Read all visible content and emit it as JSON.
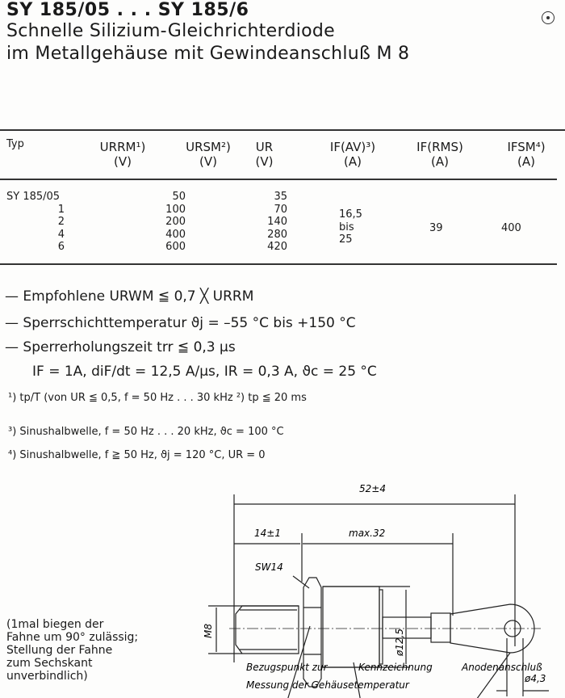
{
  "header": {
    "title": "SY 185/05 . . . SY 185/6",
    "subtitle_line1": "Schnelle Silizium-Gleichrichterdiode",
    "subtitle_line2": "im Metallgehäuse mit Gewindeanschluß M 8"
  },
  "table": {
    "columns": [
      {
        "label": "Typ",
        "unit": ""
      },
      {
        "label": "URRM¹)",
        "unit": "(V)"
      },
      {
        "label": "URSM²)",
        "unit": "(V)"
      },
      {
        "label": "UR",
        "unit": "(V)"
      },
      {
        "label": "IF(AV)³)",
        "unit": "(A)"
      },
      {
        "label": "IF(RMS)",
        "unit": "(A)"
      },
      {
        "label": "IFSM⁴)",
        "unit": "(A)"
      }
    ],
    "rows": [
      {
        "typ": "SY  185/05",
        "urrm": "50",
        "ur": "35"
      },
      {
        "typ": "1",
        "urrm": "100",
        "ur": "70"
      },
      {
        "typ": "2",
        "urrm": "200",
        "ur": "140"
      },
      {
        "typ": "4",
        "urrm": "400",
        "ur": "280"
      },
      {
        "typ": "6",
        "urrm": "600",
        "ur": "420"
      }
    ],
    "if_av": [
      "16,5",
      "bis",
      "25"
    ],
    "if_rms": "39",
    "ifsm": "400"
  },
  "specs": [
    "— Empfohlene URWM ≦ 0,7 ╳ URRM",
    "— Sperrschichttemperatur     ϑj = –55 °C bis +150 °C",
    "— Sperrerholungszeit trr ≦ 0,3 µs",
    "IF = 1A, diF/dt = 12,5 A/µs, IR = 0,3 A, ϑc =  25 °C"
  ],
  "footnotes": [
    "¹) tp/T (von UR ≦ 0,5, f = 50 Hz . . . 30 kHz  ²) tp ≦ 20 ms",
    "³)  Sinushalbwelle, f = 50 Hz . . . 20 kHz,  ϑc = 100 °C",
    "⁴)  Sinushalbwelle, f ≧ 50 Hz,  ϑj  = 120 °C,  UR = 0"
  ],
  "note": "(1mal biegen der\nFahne um 90° zulässig;\nStellung der Fahne\nzum Sechskant\nunverbindlich)",
  "drawing": {
    "dim_total": "52±4",
    "dim_thread": "14±1",
    "dim_body": "max.32",
    "wrench": "SW14",
    "thread": "M8",
    "diameter_body": "ø12,5",
    "diameter_hole": "ø4,3",
    "label_reference_1": "Bezugspunkt zur",
    "label_reference_2": "Messung der Gehäusetemperatur",
    "label_marking": "Kennzeichnung",
    "label_anode": "Anodenanschluß"
  }
}
